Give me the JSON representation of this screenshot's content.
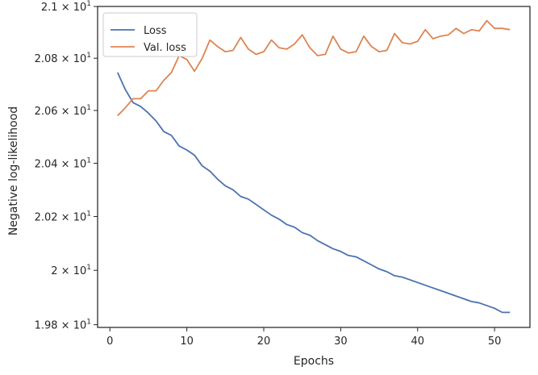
{
  "chart_data": {
    "type": "line",
    "title": "",
    "xlabel": "Epochs",
    "ylabel": "Negative log-likelihood",
    "xlim": [
      -1.6,
      54.6
    ],
    "ylim": [
      19.79,
      21.0
    ],
    "yscale": "log",
    "x_ticks": [
      0,
      10,
      20,
      30,
      40,
      50
    ],
    "y_ticks": [
      {
        "value": 19.8,
        "mantissa": "1.98",
        "base": "10",
        "exponent": "1"
      },
      {
        "value": 20.0,
        "mantissa": "2",
        "base": "10",
        "exponent": "1"
      },
      {
        "value": 20.2,
        "mantissa": "2.02",
        "base": "10",
        "exponent": "1"
      },
      {
        "value": 20.4,
        "mantissa": "2.04",
        "base": "10",
        "exponent": "1"
      },
      {
        "value": 20.6,
        "mantissa": "2.06",
        "base": "10",
        "exponent": "1"
      },
      {
        "value": 20.8,
        "mantissa": "2.08",
        "base": "10",
        "exponent": "1"
      },
      {
        "value": 21.0,
        "mantissa": "2.1",
        "base": "10",
        "exponent": "1"
      }
    ],
    "grid": false,
    "legend_position": "top-left",
    "x": [
      1,
      2,
      3,
      4,
      5,
      6,
      7,
      8,
      9,
      10,
      11,
      12,
      13,
      14,
      15,
      16,
      17,
      18,
      19,
      20,
      21,
      22,
      23,
      24,
      25,
      26,
      27,
      28,
      29,
      30,
      31,
      32,
      33,
      34,
      35,
      36,
      37,
      38,
      39,
      40,
      41,
      42,
      43,
      44,
      45,
      46,
      47,
      48,
      49,
      50,
      51,
      52
    ],
    "series": [
      {
        "name": "Loss",
        "color": "#4c72b0",
        "values": [
          20.745,
          20.68,
          20.63,
          20.615,
          20.59,
          20.56,
          20.52,
          20.505,
          20.465,
          20.45,
          20.43,
          20.39,
          20.37,
          20.34,
          20.315,
          20.3,
          20.275,
          20.265,
          20.245,
          20.225,
          20.205,
          20.19,
          20.17,
          20.16,
          20.14,
          20.13,
          20.11,
          20.095,
          20.08,
          20.07,
          20.055,
          20.05,
          20.035,
          20.02,
          20.005,
          19.995,
          19.98,
          19.975,
          19.965,
          19.955,
          19.945,
          19.935,
          19.925,
          19.915,
          19.905,
          19.895,
          19.885,
          19.88,
          19.87,
          19.86,
          19.845,
          19.845
        ]
      },
      {
        "name": "Val. loss",
        "color": "#dd8452",
        "values": [
          20.58,
          20.61,
          20.645,
          20.645,
          20.675,
          20.675,
          20.715,
          20.745,
          20.81,
          20.795,
          20.75,
          20.8,
          20.87,
          20.845,
          20.825,
          20.83,
          20.88,
          20.835,
          20.815,
          20.825,
          20.87,
          20.84,
          20.835,
          20.855,
          20.89,
          20.84,
          20.81,
          20.815,
          20.885,
          20.835,
          20.82,
          20.825,
          20.885,
          20.845,
          20.825,
          20.83,
          20.895,
          20.86,
          20.855,
          20.865,
          20.91,
          20.875,
          20.885,
          20.89,
          20.915,
          20.895,
          20.91,
          20.905,
          20.945,
          20.915,
          20.915,
          20.91
        ]
      }
    ]
  }
}
